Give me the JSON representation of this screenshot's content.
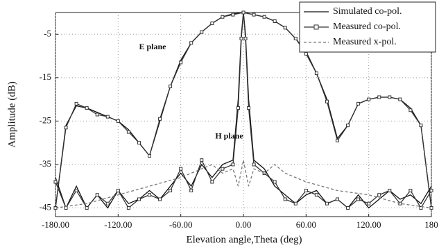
{
  "chart_data": {
    "type": "line",
    "xlabel": "Elevation angle,Theta (deg)",
    "ylabel": "Amplitude (dB)",
    "xlim": [
      -180,
      180
    ],
    "ylim": [
      -47,
      0
    ],
    "xticks": [
      {
        "value": -180,
        "label": "-180.00"
      },
      {
        "value": -120,
        "label": "-120.00"
      },
      {
        "value": -60,
        "label": "-60.00"
      },
      {
        "value": 0,
        "label": "0.00"
      },
      {
        "value": 60,
        "label": "60.00"
      },
      {
        "value": 120,
        "label": "120.00"
      },
      180
    ],
    "yticks": [
      -5,
      -15,
      -25,
      -35,
      -45
    ],
    "grid": true,
    "legend": "upper right",
    "annotations": [
      {
        "text": "E plane",
        "x": -100,
        "y": -8
      },
      {
        "text": "H plane",
        "x": -27,
        "y": -28.6
      }
    ],
    "series": [
      {
        "name": "Simulated co-pol.",
        "color": "#111",
        "style": "solid",
        "marker": "none",
        "x": [
          -180,
          -170,
          -160,
          -150,
          -140,
          -130,
          -120,
          -110,
          -100,
          -90,
          -80,
          -70,
          -60,
          -50,
          -40,
          -30,
          -20,
          -10,
          0,
          10,
          20,
          30,
          40,
          50,
          60,
          70,
          80,
          90,
          100,
          110,
          120,
          130,
          140,
          150,
          160,
          170,
          180
        ],
        "values": [
          -45,
          -26,
          -21.5,
          -22,
          -23,
          -24,
          -25,
          -27,
          -30,
          -33,
          -25,
          -17,
          -11,
          -7,
          -4.5,
          -2.5,
          -1,
          -0.3,
          0,
          -0.5,
          -1,
          -2,
          -3.5,
          -6,
          -9,
          -14,
          -20,
          -29,
          -26,
          -21,
          -20,
          -19.5,
          -19.5,
          -20,
          -22,
          -26,
          -45
        ]
      },
      {
        "name": "Measured co-pol.",
        "color": "#333",
        "style": "solid",
        "marker": "square",
        "x": [
          -180,
          -170,
          -160,
          -150,
          -140,
          -130,
          -120,
          -110,
          -100,
          -90,
          -80,
          -70,
          -60,
          -50,
          -40,
          -30,
          -20,
          -10,
          0,
          10,
          20,
          30,
          40,
          50,
          60,
          70,
          80,
          90,
          100,
          110,
          120,
          130,
          140,
          150,
          160,
          170,
          180
        ],
        "values": [
          -45,
          -26.5,
          -21,
          -22,
          -23.5,
          -24,
          -25,
          -27.5,
          -30,
          -33,
          -24.5,
          -17,
          -11.5,
          -7,
          -4.5,
          -2.5,
          -1,
          -0.5,
          0,
          -0.5,
          -1,
          -2,
          -3.5,
          -6,
          -9.5,
          -14,
          -20.5,
          -29.5,
          -26,
          -21,
          -20,
          -19.5,
          -19.5,
          -20,
          -22.5,
          -26,
          -45
        ]
      },
      {
        "name": "Simulated co-pol.",
        "color": "#111",
        "style": "solid",
        "marker": "none",
        "x": [
          -180,
          -170,
          -160,
          -150,
          -140,
          -130,
          -120,
          -110,
          -100,
          -90,
          -80,
          -70,
          -60,
          -50,
          -40,
          -30,
          -20,
          -10,
          -5,
          -2,
          0,
          2,
          5,
          10,
          20,
          30,
          40,
          50,
          60,
          70,
          80,
          90,
          100,
          110,
          120,
          130,
          140,
          150,
          160,
          170,
          180
        ],
        "values": [
          -38,
          -45,
          -40,
          -45,
          -42,
          -45,
          -41,
          -44,
          -43,
          -41,
          -43,
          -40,
          -37,
          -40,
          -35,
          -38,
          -35,
          -34,
          -20,
          -5,
          0,
          -5,
          -20,
          -34,
          -36,
          -40,
          -42,
          -44,
          -42,
          -41,
          -44,
          -43,
          -45,
          -42,
          -45,
          -43,
          -41,
          -43,
          -42,
          -44,
          -40
        ]
      },
      {
        "name": "Measured co-pol.",
        "color": "#333",
        "style": "solid",
        "marker": "square",
        "x": [
          -180,
          -170,
          -160,
          -150,
          -140,
          -130,
          -120,
          -110,
          -100,
          -90,
          -80,
          -70,
          -60,
          -50,
          -40,
          -30,
          -20,
          -10,
          -5,
          -2,
          0,
          2,
          5,
          10,
          20,
          30,
          40,
          50,
          60,
          70,
          80,
          90,
          100,
          110,
          120,
          130,
          140,
          150,
          160,
          170,
          180
        ],
        "values": [
          -39,
          -45,
          -41,
          -45,
          -42,
          -44,
          -41,
          -45,
          -43,
          -42,
          -43,
          -41,
          -36,
          -41,
          -34,
          -39,
          -36,
          -35,
          -22,
          -6,
          0,
          -6,
          -22,
          -35,
          -37,
          -39,
          -43,
          -44,
          -41,
          -42,
          -44,
          -43,
          -45,
          -43,
          -44,
          -42,
          -41,
          -44,
          -41,
          -45,
          -41
        ]
      },
      {
        "name": "Measured x-pol.",
        "color": "#777",
        "style": "dashed",
        "marker": "none",
        "x": [
          -180,
          -150,
          -120,
          -90,
          -60,
          -40,
          -30,
          -20,
          -10,
          -5,
          0,
          5,
          10,
          20,
          30,
          40,
          60,
          90,
          120,
          150,
          180
        ],
        "values": [
          -45,
          -44,
          -42,
          -40,
          -38,
          -36,
          -35,
          -37,
          -36,
          -40,
          -34,
          -40,
          -36,
          -37,
          -35,
          -37,
          -39,
          -41,
          -42,
          -44,
          -45
        ]
      }
    ]
  }
}
